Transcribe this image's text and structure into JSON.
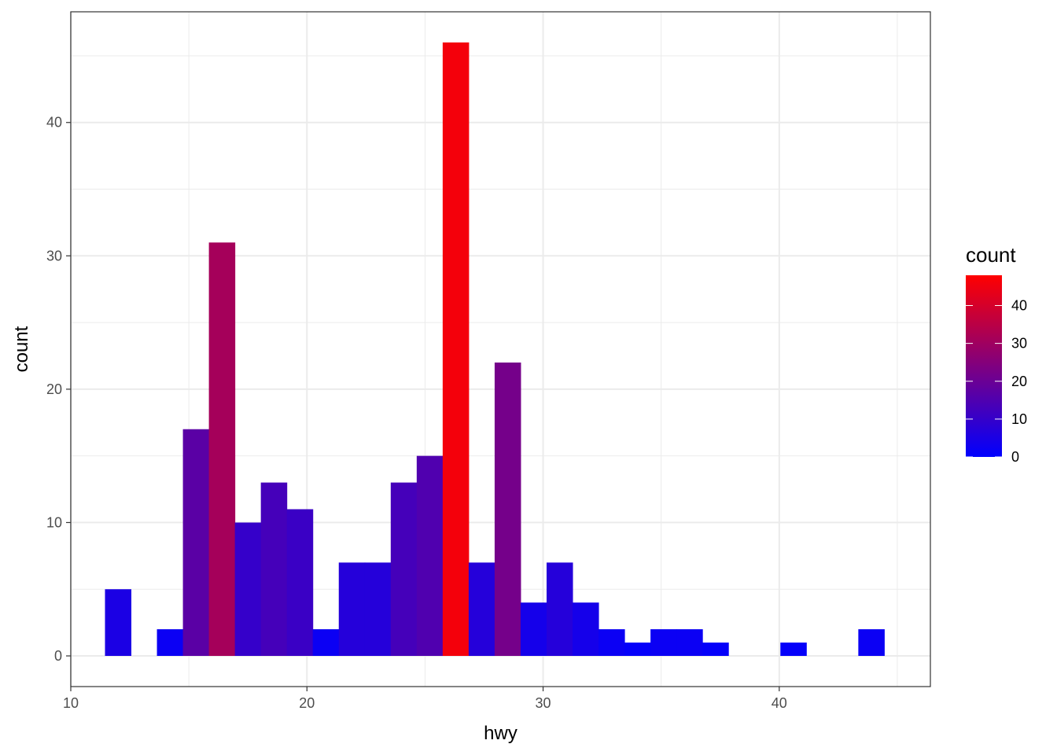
{
  "chart_data": {
    "type": "bar",
    "subtype": "histogram",
    "xlabel": "hwy",
    "ylabel": "count",
    "xlim": [
      10,
      46.4
    ],
    "ylim": [
      -2.3,
      48.3
    ],
    "x_ticks": [
      10,
      20,
      30,
      40
    ],
    "y_ticks": [
      0,
      10,
      20,
      30,
      40
    ],
    "grid": true,
    "bin_width": 1.1034,
    "bins": [
      {
        "x": 12.0,
        "count": 5
      },
      {
        "x": 13.1,
        "count": 0
      },
      {
        "x": 14.2,
        "count": 2
      },
      {
        "x": 15.3,
        "count": 17
      },
      {
        "x": 16.4,
        "count": 31
      },
      {
        "x": 17.5,
        "count": 10
      },
      {
        "x": 18.6,
        "count": 13
      },
      {
        "x": 19.7,
        "count": 11
      },
      {
        "x": 20.8,
        "count": 2
      },
      {
        "x": 21.9,
        "count": 7
      },
      {
        "x": 23.0,
        "count": 7
      },
      {
        "x": 24.1,
        "count": 13
      },
      {
        "x": 25.2,
        "count": 15
      },
      {
        "x": 26.3,
        "count": 46
      },
      {
        "x": 27.4,
        "count": 7
      },
      {
        "x": 28.5,
        "count": 22
      },
      {
        "x": 29.6,
        "count": 4
      },
      {
        "x": 30.7,
        "count": 7
      },
      {
        "x": 31.8,
        "count": 4
      },
      {
        "x": 32.9,
        "count": 2
      },
      {
        "x": 34.0,
        "count": 1
      },
      {
        "x": 35.1,
        "count": 2
      },
      {
        "x": 36.2,
        "count": 2
      },
      {
        "x": 37.3,
        "count": 1
      },
      {
        "x": 38.4,
        "count": 0
      },
      {
        "x": 39.5,
        "count": 0
      },
      {
        "x": 40.6,
        "count": 1
      },
      {
        "x": 41.7,
        "count": 0
      },
      {
        "x": 42.8,
        "count": 0
      },
      {
        "x": 43.9,
        "count": 2
      }
    ],
    "legend": {
      "title": "count",
      "position": "right",
      "type": "colorbar",
      "range": [
        0,
        48
      ],
      "ticks": [
        0,
        10,
        20,
        30,
        40
      ],
      "low_color": "#0000ff",
      "high_color": "#ff0000"
    }
  }
}
